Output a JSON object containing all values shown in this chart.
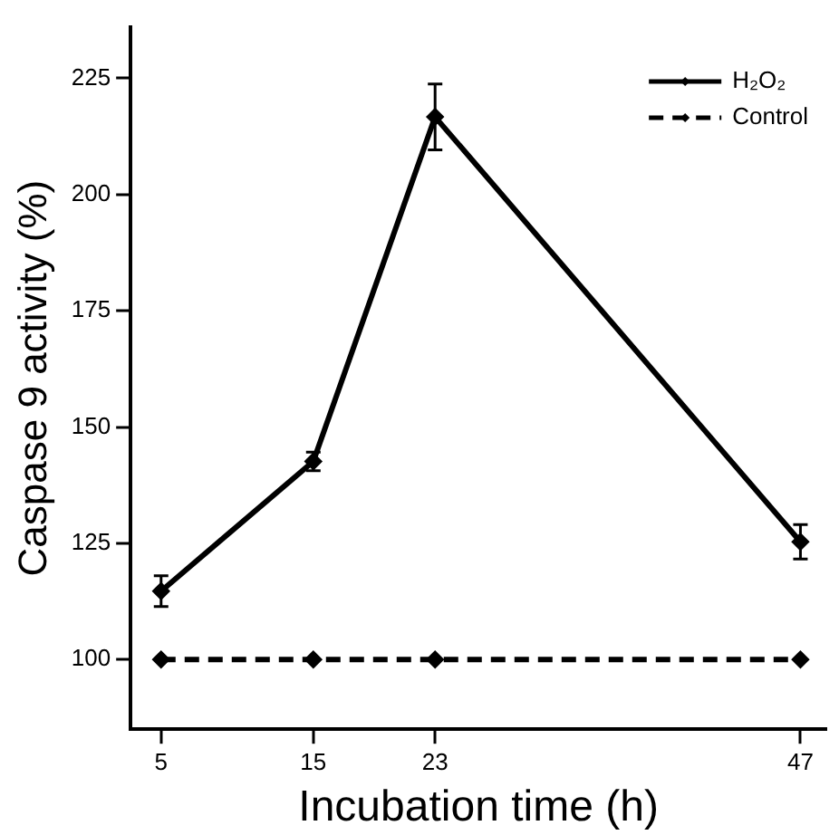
{
  "chart_data": {
    "type": "line",
    "xlabel": "Incubation time (h)",
    "ylabel": "Caspase 9 activity (%)",
    "x": [
      5,
      15,
      23,
      47
    ],
    "xlim": [
      3,
      48.7
    ],
    "xticks": [
      5,
      15,
      23,
      47
    ],
    "ylim": [
      85,
      236
    ],
    "yticks": [
      100,
      125,
      150,
      175,
      200,
      225
    ],
    "series": [
      {
        "name": "H₂O₂",
        "color": "#000000",
        "values": [
          114.7,
          142.6,
          216.7,
          125.3
        ],
        "errors": [
          3.3,
          2,
          7.1,
          3.7
        ],
        "line_style": "solid"
      },
      {
        "name": "Control",
        "color": "#000000",
        "values": [
          100,
          100,
          100,
          100
        ],
        "line_style": "dashed"
      }
    ],
    "marker": "diamond",
    "grid": false,
    "legend": "top right"
  }
}
